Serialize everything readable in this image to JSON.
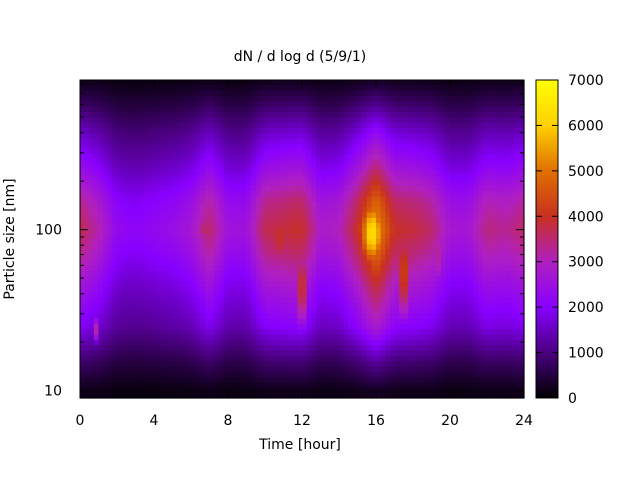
{
  "chart_data": {
    "type": "heatmap",
    "title": "dN / d log d (5/9/1)",
    "xlabel": "Time [hour]",
    "ylabel": "Particle size [nm]",
    "xlim": [
      0,
      24
    ],
    "ylim": [
      9,
      850
    ],
    "yscale": "log",
    "x_ticks": [
      "0",
      "4",
      "8",
      "12",
      "16",
      "20",
      "24"
    ],
    "y_ticks": [
      "10",
      "100"
    ],
    "colorbar": {
      "min": 0,
      "max": 7000,
      "ticks": [
        "0",
        "1000",
        "2000",
        "3000",
        "4000",
        "5000",
        "6000",
        "7000"
      ],
      "palette": [
        "#000000",
        "#4a0080",
        "#8800ff",
        "#b020c0",
        "#c83020",
        "#e07000",
        "#ffd000",
        "#ffff00"
      ]
    },
    "size_profile": [
      {
        "size_nm": 10,
        "value": 150
      },
      {
        "size_nm": 15,
        "value": 650
      },
      {
        "size_nm": 25,
        "value": 1500
      },
      {
        "size_nm": 45,
        "value": 2050
      },
      {
        "size_nm": 70,
        "value": 2550
      },
      {
        "size_nm": 100,
        "value": 2850
      },
      {
        "size_nm": 150,
        "value": 2550
      },
      {
        "size_nm": 250,
        "value": 1800
      },
      {
        "size_nm": 400,
        "value": 1200
      },
      {
        "size_nm": 600,
        "value": 600
      },
      {
        "size_nm": 850,
        "value": 150
      }
    ],
    "time_activity": [
      {
        "t": 0,
        "a": 1.3
      },
      {
        "t": 1,
        "a": 1.1
      },
      {
        "t": 2,
        "a": 0.8
      },
      {
        "t": 3,
        "a": 0.75
      },
      {
        "t": 4,
        "a": 0.8
      },
      {
        "t": 5,
        "a": 0.85
      },
      {
        "t": 6,
        "a": 0.95
      },
      {
        "t": 7,
        "a": 1.25
      },
      {
        "t": 8,
        "a": 0.9
      },
      {
        "t": 9,
        "a": 0.9
      },
      {
        "t": 10,
        "a": 1.3
      },
      {
        "t": 11,
        "a": 1.35
      },
      {
        "t": 12,
        "a": 1.4
      },
      {
        "t": 13,
        "a": 1.0
      },
      {
        "t": 14,
        "a": 1.05
      },
      {
        "t": 15,
        "a": 1.4
      },
      {
        "t": 16,
        "a": 1.9
      },
      {
        "t": 17,
        "a": 1.4
      },
      {
        "t": 18,
        "a": 1.35
      },
      {
        "t": 19,
        "a": 1.25
      },
      {
        "t": 20,
        "a": 0.95
      },
      {
        "t": 21,
        "a": 0.95
      },
      {
        "t": 22,
        "a": 1.2
      },
      {
        "t": 23,
        "a": 1.15
      },
      {
        "t": 24,
        "a": 1.25
      }
    ],
    "hotspots": [
      {
        "t": 15.8,
        "size_nm": 95,
        "value": 6300,
        "dt": 0.9,
        "dlog": 0.28
      },
      {
        "t": 17.5,
        "size_nm": 55,
        "value": 4300,
        "dt": 0.6,
        "dlog": 0.4
      },
      {
        "t": 12.0,
        "size_nm": 45,
        "value": 4100,
        "dt": 0.45,
        "dlog": 0.35
      },
      {
        "t": 10.8,
        "size_nm": 90,
        "value": 4000,
        "dt": 0.9,
        "dlog": 0.3
      },
      {
        "t": 6.8,
        "size_nm": 100,
        "value": 3600,
        "dt": 0.8,
        "dlog": 0.15
      },
      {
        "t": 0.9,
        "size_nm": 24,
        "value": 3200,
        "dt": 0.2,
        "dlog": 0.1
      },
      {
        "t": 19.3,
        "size_nm": 70,
        "value": 3300,
        "dt": 0.5,
        "dlog": 0.3
      }
    ]
  }
}
